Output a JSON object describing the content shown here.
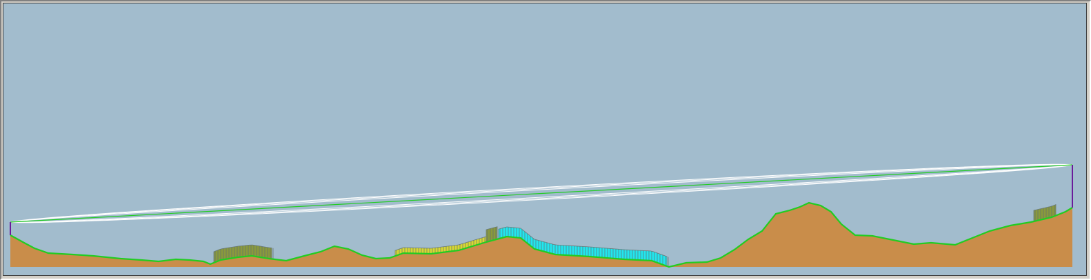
{
  "profile": {
    "colors": {
      "sky": "#a2bccd",
      "terrain_fill": "#c98d4a",
      "terrain_edge": "#22cc22",
      "los_line": "#22cc22",
      "fresnel": "#ffffff",
      "endpoint": "#6a1b9a",
      "trees": "#8a9a3c",
      "water": "#22e6ee",
      "crops": "#d8d832",
      "frame": "#d4d0c8"
    },
    "fresnel_zone_count": 3,
    "clutter_types": [
      "trees",
      "crops",
      "water"
    ]
  }
}
